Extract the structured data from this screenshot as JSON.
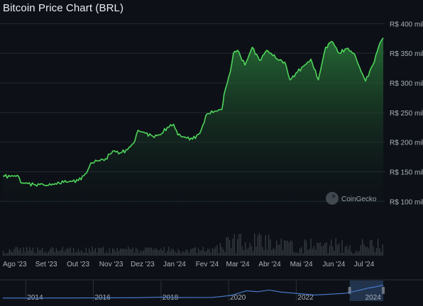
{
  "title": "Bitcoin Price Chart (BRL)",
  "watermark": "CoinGecko",
  "colors": {
    "line": "#4fd35a",
    "fill_top": "#2a7a3a",
    "fill_bottom": "#0d1117",
    "grid": "#232a33",
    "volume": "#3a3f46",
    "navigator_line": "#4a7fd4",
    "navigator_highlight": "#35507a"
  },
  "chart_data": {
    "type": "area",
    "y_axis_labels": [
      "R$ 400 mil",
      "R$ 350 mil",
      "R$ 300 mil",
      "R$ 250 mil",
      "R$ 200 mil",
      "R$ 150 mil",
      "R$ 100 mil"
    ],
    "y_ticks": [
      400,
      350,
      300,
      250,
      200,
      150,
      100
    ],
    "ylim": [
      86,
      404
    ],
    "y_unit": "R$ mil",
    "x_axis_labels": [
      "Ago '23",
      "Set '23",
      "Out '23",
      "Nov '23",
      "Dez '23",
      "Jan '24",
      "Fev '24",
      "Mar '24",
      "Abr '24",
      "Mai '24",
      "Jun '24",
      "Jul '24"
    ],
    "x_range": [
      "2023-08-01",
      "2024-07-29"
    ],
    "grid": true,
    "series": [
      {
        "x": [
          "2023-08-01",
          "2023-08-08",
          "2023-08-15",
          "2023-08-18",
          "2023-08-25",
          "2023-09-01",
          "2023-09-08",
          "2023-09-12",
          "2023-09-20",
          "2023-09-28",
          "2023-10-05",
          "2023-10-12",
          "2023-10-20",
          "2023-10-24",
          "2023-10-30",
          "2023-11-07",
          "2023-11-14",
          "2023-11-21",
          "2023-11-28",
          "2023-12-05",
          "2023-12-08",
          "2023-12-15",
          "2023-12-22",
          "2023-12-29",
          "2024-01-05",
          "2024-01-11",
          "2024-01-15",
          "2024-01-22",
          "2024-01-29",
          "2024-02-05",
          "2024-02-12",
          "2024-02-19",
          "2024-02-26",
          "2024-02-28",
          "2024-03-05",
          "2024-03-08",
          "2024-03-12",
          "2024-03-19",
          "2024-03-26",
          "2024-04-02",
          "2024-04-09",
          "2024-04-13",
          "2024-04-19",
          "2024-04-26",
          "2024-05-01",
          "2024-05-08",
          "2024-05-15",
          "2024-05-21",
          "2024-05-28",
          "2024-06-04",
          "2024-06-10",
          "2024-06-17",
          "2024-06-24",
          "2024-07-01",
          "2024-07-05",
          "2024-07-12",
          "2024-07-19",
          "2024-07-26",
          "2024-07-29"
        ],
        "values": [
          143,
          142,
          144,
          132,
          130,
          128,
          129,
          127,
          130,
          132,
          134,
          135,
          148,
          165,
          168,
          172,
          185,
          182,
          187,
          202,
          220,
          215,
          210,
          212,
          225,
          230,
          212,
          208,
          205,
          215,
          248,
          252,
          255,
          280,
          318,
          350,
          355,
          330,
          360,
          338,
          355,
          350,
          340,
          335,
          305,
          318,
          330,
          340,
          305,
          360,
          370,
          350,
          358,
          350,
          332,
          303,
          330,
          368,
          376
        ]
      }
    ],
    "volume_note": "volume bars (unlabeled)",
    "navigator": {
      "x_labels": [
        "2014",
        "2016",
        "2018",
        "2020",
        "2022",
        "2024"
      ],
      "x_range": [
        "2013-04-28",
        "2024-07-29"
      ]
    }
  }
}
